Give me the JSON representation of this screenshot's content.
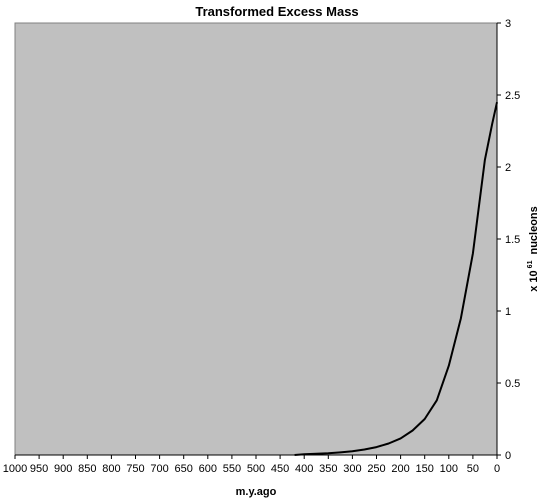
{
  "chart_data": {
    "type": "line",
    "title": "Transformed Excess Mass",
    "xlabel": "m.y.ago",
    "ylabel": {
      "prefix": "x 10",
      "exponent": "61",
      "suffix": "nucleons"
    },
    "x_reversed": true,
    "xlim": [
      1000,
      0
    ],
    "ylim": [
      0,
      3
    ],
    "x_ticks": [
      "1000",
      "950",
      "900",
      "850",
      "800",
      "750",
      "700",
      "650",
      "600",
      "550",
      "500",
      "450",
      "400",
      "350",
      "300",
      "250",
      "200",
      "150",
      "100",
      "50",
      "0"
    ],
    "y_ticks": [
      "0",
      "0.5",
      "1",
      "1.5",
      "2",
      "2.5",
      "3"
    ],
    "y_axis_side": "right",
    "grid": false,
    "legend": "none",
    "background_color": "#c0c0c0",
    "line_color": "#000000",
    "series": [
      {
        "x": [
          420,
          400,
          375,
          350,
          325,
          300,
          275,
          250,
          225,
          200,
          175,
          150,
          125,
          100,
          75,
          50,
          25,
          10,
          0
        ],
        "y": [
          0.0,
          0.005,
          0.008,
          0.012,
          0.018,
          0.026,
          0.038,
          0.055,
          0.08,
          0.115,
          0.17,
          0.25,
          0.38,
          0.62,
          0.95,
          1.4,
          2.05,
          2.3,
          2.45
        ]
      }
    ]
  }
}
